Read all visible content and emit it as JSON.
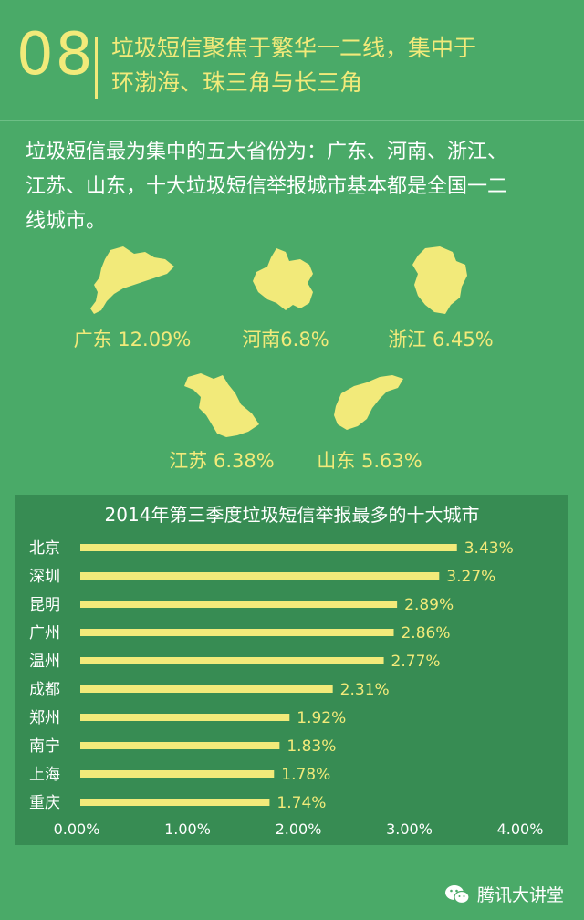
{
  "header": {
    "number": "08",
    "title_line1": "垃圾短信聚焦于繁华一二线，集中于",
    "title_line2": "环渤海、珠三角与长三角"
  },
  "intro": {
    "line1": "垃圾短信最为集中的五大省份为：广东、河南、浙江、",
    "line2": "江苏、山东，十大垃圾短信举报城市基本都是全国一二",
    "line3": "线城市。"
  },
  "provinces": [
    {
      "label": "广东 12.09%"
    },
    {
      "label": "河南6.8%"
    },
    {
      "label": "浙江 6.45%"
    },
    {
      "label": "江苏 6.38%"
    },
    {
      "label": "山东 5.63%"
    }
  ],
  "chart_data": {
    "type": "bar",
    "orientation": "horizontal",
    "title": "2014年第三季度垃圾短信举报最多的十大城市",
    "categories": [
      "北京",
      "深圳",
      "昆明",
      "广州",
      "温州",
      "成都",
      "郑州",
      "南宁",
      "上海",
      "重庆"
    ],
    "values": [
      3.43,
      3.27,
      2.89,
      2.86,
      2.77,
      2.31,
      1.92,
      1.83,
      1.78,
      1.74
    ],
    "value_labels": [
      "3.43%",
      "3.27%",
      "2.89%",
      "2.86%",
      "2.77%",
      "2.31%",
      "1.92%",
      "1.83%",
      "1.78%",
      "1.74%"
    ],
    "xlim": [
      0,
      4
    ],
    "xticks": [
      "0.00%",
      "1.00%",
      "2.00%",
      "3.00%",
      "4.00%"
    ],
    "grid": false,
    "colors": {
      "bar": "#f2ea7a",
      "panel": "#378c53",
      "text": "#f2ea7a"
    }
  },
  "colors": {
    "background": "#4aaa68",
    "accent": "#f2ea7a"
  },
  "footer": {
    "icon": "wechat-icon",
    "text": "腾讯大讲堂"
  }
}
